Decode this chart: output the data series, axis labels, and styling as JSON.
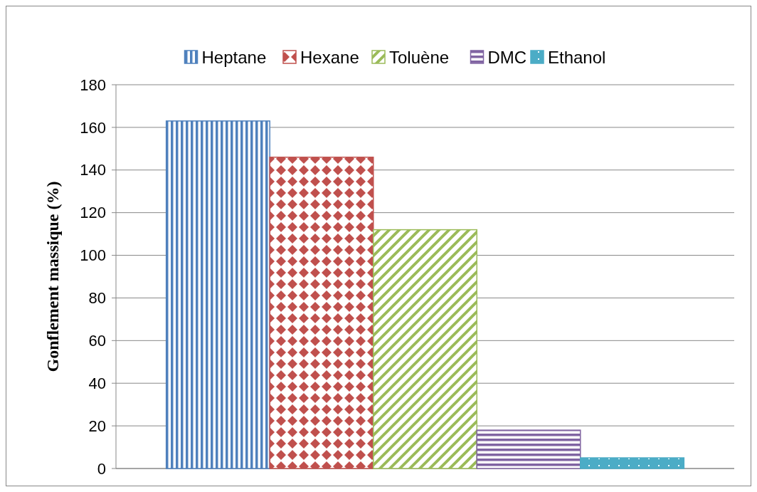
{
  "chart_data": {
    "type": "bar",
    "ylabel": "Gonflement massique (%)",
    "categories": [
      null
    ],
    "series": [
      {
        "name": "Heptane",
        "color": "#4f81bd",
        "values": [
          163
        ]
      },
      {
        "name": "Hexane",
        "color": "#c0504d",
        "values": [
          146
        ]
      },
      {
        "name": "Toluène",
        "color": "#9bbb59",
        "values": [
          112
        ]
      },
      {
        "name": "DMC",
        "color": "#8064a2",
        "values": [
          18
        ]
      },
      {
        "name": "Ethanol",
        "color": "#4bacc6",
        "values": [
          5
        ]
      }
    ],
    "ylim": [
      0,
      180
    ],
    "yticks": [
      0,
      20,
      40,
      60,
      80,
      100,
      120,
      140,
      160,
      180
    ],
    "grid": "y",
    "legend": "top"
  }
}
